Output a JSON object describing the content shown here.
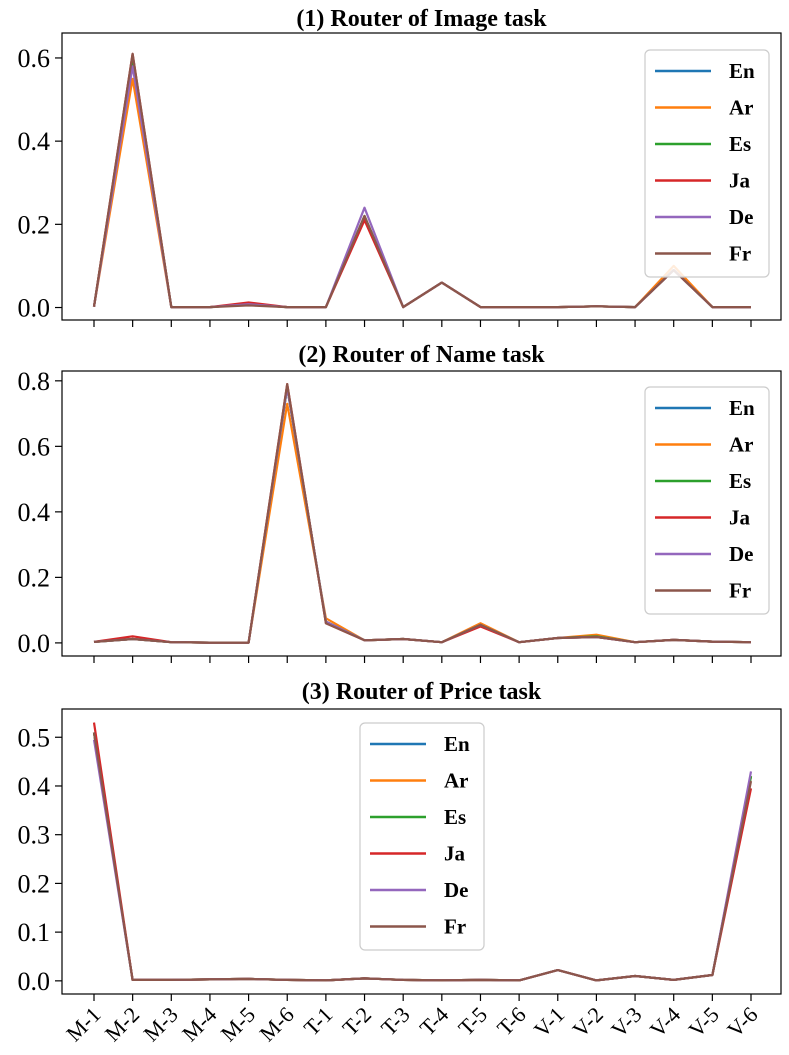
{
  "chart_data": [
    {
      "type": "line",
      "title": "(1) Router of Image task",
      "x": [
        "M-1",
        "M-2",
        "M-3",
        "M-4",
        "M-5",
        "M-6",
        "T-1",
        "T-2",
        "T-3",
        "T-4",
        "T-5",
        "T-6",
        "V-1",
        "V-2",
        "V-3",
        "V-4",
        "V-5",
        "V-6"
      ],
      "ylim": [
        -0.03,
        0.66
      ],
      "yticks": [
        "0.0",
        "0.2",
        "0.4",
        "0.6"
      ],
      "show_xtick_labels": false,
      "legend_position": "upper-right",
      "series": [
        {
          "name": "En",
          "color": "#1f77b4",
          "values": [
            0.002,
            0.6,
            0.001,
            0.001,
            0.008,
            0.001,
            0.001,
            0.22,
            0.001,
            0.06,
            0.001,
            0.001,
            0.001,
            0.003,
            0.001,
            0.09,
            0.001,
            0.001
          ]
        },
        {
          "name": "Ar",
          "color": "#ff7f0e",
          "values": [
            0.002,
            0.55,
            0.001,
            0.001,
            0.008,
            0.001,
            0.001,
            0.22,
            0.001,
            0.06,
            0.001,
            0.001,
            0.001,
            0.003,
            0.001,
            0.1,
            0.001,
            0.001
          ]
        },
        {
          "name": "Es",
          "color": "#2ca02c",
          "values": [
            0.002,
            0.6,
            0.001,
            0.001,
            0.008,
            0.001,
            0.001,
            0.22,
            0.001,
            0.06,
            0.001,
            0.001,
            0.001,
            0.003,
            0.001,
            0.09,
            0.001,
            0.001
          ]
        },
        {
          "name": "Ja",
          "color": "#d62728",
          "values": [
            0.002,
            0.61,
            0.001,
            0.001,
            0.012,
            0.001,
            0.001,
            0.21,
            0.001,
            0.06,
            0.001,
            0.001,
            0.001,
            0.003,
            0.001,
            0.09,
            0.001,
            0.001
          ]
        },
        {
          "name": "De",
          "color": "#9467bd",
          "values": [
            0.002,
            0.58,
            0.001,
            0.001,
            0.008,
            0.001,
            0.001,
            0.24,
            0.001,
            0.06,
            0.001,
            0.001,
            0.001,
            0.003,
            0.001,
            0.09,
            0.001,
            0.001
          ]
        },
        {
          "name": "Fr",
          "color": "#8c564b",
          "values": [
            0.002,
            0.61,
            0.001,
            0.001,
            0.005,
            0.001,
            0.001,
            0.22,
            0.001,
            0.06,
            0.001,
            0.001,
            0.001,
            0.003,
            0.001,
            0.09,
            0.001,
            0.001
          ]
        }
      ]
    },
    {
      "type": "line",
      "title": "(2) Router of Name task",
      "x": [
        "M-1",
        "M-2",
        "M-3",
        "M-4",
        "M-5",
        "M-6",
        "T-1",
        "T-2",
        "T-3",
        "T-4",
        "T-5",
        "T-6",
        "V-1",
        "V-2",
        "V-3",
        "V-4",
        "V-5",
        "V-6"
      ],
      "ylim": [
        -0.04,
        0.83
      ],
      "yticks": [
        "0.0",
        "0.2",
        "0.4",
        "0.6",
        "0.8"
      ],
      "show_xtick_labels": false,
      "legend_position": "upper-right",
      "series": [
        {
          "name": "En",
          "color": "#1f77b4",
          "values": [
            0.003,
            0.012,
            0.002,
            0.001,
            0.001,
            0.78,
            0.065,
            0.008,
            0.012,
            0.002,
            0.055,
            0.002,
            0.015,
            0.018,
            0.002,
            0.009,
            0.004,
            0.002
          ]
        },
        {
          "name": "Ar",
          "color": "#ff7f0e",
          "values": [
            0.003,
            0.012,
            0.002,
            0.001,
            0.001,
            0.73,
            0.075,
            0.008,
            0.012,
            0.002,
            0.06,
            0.002,
            0.015,
            0.025,
            0.002,
            0.009,
            0.004,
            0.002
          ]
        },
        {
          "name": "Es",
          "color": "#2ca02c",
          "values": [
            0.003,
            0.012,
            0.002,
            0.001,
            0.001,
            0.78,
            0.065,
            0.008,
            0.012,
            0.002,
            0.055,
            0.002,
            0.015,
            0.02,
            0.002,
            0.009,
            0.004,
            0.002
          ]
        },
        {
          "name": "Ja",
          "color": "#d62728",
          "values": [
            0.003,
            0.02,
            0.002,
            0.001,
            0.001,
            0.79,
            0.06,
            0.008,
            0.012,
            0.002,
            0.05,
            0.002,
            0.015,
            0.018,
            0.002,
            0.009,
            0.004,
            0.002
          ]
        },
        {
          "name": "De",
          "color": "#9467bd",
          "values": [
            0.003,
            0.012,
            0.002,
            0.001,
            0.001,
            0.78,
            0.065,
            0.008,
            0.012,
            0.002,
            0.055,
            0.002,
            0.015,
            0.018,
            0.002,
            0.009,
            0.004,
            0.002
          ]
        },
        {
          "name": "Fr",
          "color": "#8c564b",
          "values": [
            0.003,
            0.012,
            0.002,
            0.001,
            0.001,
            0.79,
            0.06,
            0.008,
            0.012,
            0.002,
            0.055,
            0.002,
            0.015,
            0.018,
            0.002,
            0.009,
            0.004,
            0.002
          ]
        }
      ]
    },
    {
      "type": "line",
      "title": "(3) Router of Price task",
      "x": [
        "M-1",
        "M-2",
        "M-3",
        "M-4",
        "M-5",
        "M-6",
        "T-1",
        "T-2",
        "T-3",
        "T-4",
        "T-5",
        "T-6",
        "V-1",
        "V-2",
        "V-3",
        "V-4",
        "V-5",
        "V-6"
      ],
      "ylim": [
        -0.027,
        0.558
      ],
      "yticks": [
        "0.0",
        "0.1",
        "0.2",
        "0.3",
        "0.4",
        "0.5"
      ],
      "show_xtick_labels": true,
      "legend_position": "upper-center",
      "series": [
        {
          "name": "En",
          "color": "#1f77b4",
          "values": [
            0.51,
            0.002,
            0.002,
            0.003,
            0.004,
            0.002,
            0.001,
            0.005,
            0.002,
            0.001,
            0.002,
            0.001,
            0.022,
            0.001,
            0.01,
            0.002,
            0.012,
            0.42
          ]
        },
        {
          "name": "Ar",
          "color": "#ff7f0e",
          "values": [
            0.51,
            0.002,
            0.002,
            0.003,
            0.004,
            0.002,
            0.001,
            0.005,
            0.002,
            0.001,
            0.002,
            0.001,
            0.022,
            0.001,
            0.01,
            0.002,
            0.012,
            0.42
          ]
        },
        {
          "name": "Es",
          "color": "#2ca02c",
          "values": [
            0.51,
            0.002,
            0.002,
            0.003,
            0.004,
            0.002,
            0.001,
            0.005,
            0.002,
            0.001,
            0.002,
            0.001,
            0.022,
            0.001,
            0.01,
            0.002,
            0.012,
            0.42
          ]
        },
        {
          "name": "Ja",
          "color": "#d62728",
          "values": [
            0.53,
            0.002,
            0.002,
            0.003,
            0.004,
            0.002,
            0.001,
            0.005,
            0.002,
            0.001,
            0.002,
            0.001,
            0.022,
            0.001,
            0.01,
            0.002,
            0.012,
            0.395
          ]
        },
        {
          "name": "De",
          "color": "#9467bd",
          "values": [
            0.495,
            0.002,
            0.002,
            0.003,
            0.004,
            0.002,
            0.001,
            0.005,
            0.002,
            0.001,
            0.002,
            0.001,
            0.022,
            0.001,
            0.01,
            0.002,
            0.012,
            0.43
          ]
        },
        {
          "name": "Fr",
          "color": "#8c564b",
          "values": [
            0.51,
            0.002,
            0.002,
            0.003,
            0.004,
            0.002,
            0.001,
            0.005,
            0.002,
            0.001,
            0.002,
            0.001,
            0.022,
            0.001,
            0.01,
            0.002,
            0.012,
            0.41
          ]
        }
      ]
    }
  ]
}
